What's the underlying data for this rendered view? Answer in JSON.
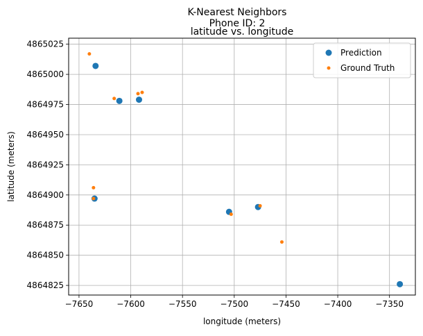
{
  "chart_data": {
    "type": "scatter",
    "title": "K-Nearest Neighbors",
    "subtitle": "Phone ID: 2",
    "axes_title": "latitude vs. longitude",
    "xlabel": "longitude (meters)",
    "ylabel": "latitude (meters)",
    "xlim": [
      -7660,
      -7325
    ],
    "ylim": [
      4864817,
      4865030
    ],
    "xticks": [
      {
        "value": -7650,
        "label": "−7650"
      },
      {
        "value": -7600,
        "label": "−7600"
      },
      {
        "value": -7550,
        "label": "−7550"
      },
      {
        "value": -7500,
        "label": "−7500"
      },
      {
        "value": -7450,
        "label": "−7450"
      },
      {
        "value": -7400,
        "label": "−7400"
      },
      {
        "value": -7350,
        "label": "−7350"
      }
    ],
    "yticks": [
      {
        "value": 4864825,
        "label": "4864825"
      },
      {
        "value": 4864850,
        "label": "4864850"
      },
      {
        "value": 4864875,
        "label": "4864875"
      },
      {
        "value": 4864900,
        "label": "4864900"
      },
      {
        "value": 4864925,
        "label": "4864925"
      },
      {
        "value": 4864950,
        "label": "4864950"
      },
      {
        "value": 4864975,
        "label": "4864975"
      },
      {
        "value": 4865000,
        "label": "4865000"
      },
      {
        "value": 4865025,
        "label": "4865025"
      }
    ],
    "grid": true,
    "legend_position": "top-right",
    "series": [
      {
        "name": "Prediction",
        "color": "#1f77b4",
        "marker": "large-dot",
        "points": [
          {
            "x": -7634,
            "y": 4865007
          },
          {
            "x": -7611,
            "y": 4864978
          },
          {
            "x": -7592,
            "y": 4864979
          },
          {
            "x": -7635,
            "y": 4864897
          },
          {
            "x": -7505,
            "y": 4864886
          },
          {
            "x": -7477,
            "y": 4864890
          },
          {
            "x": -7340,
            "y": 4864826
          }
        ]
      },
      {
        "name": "Ground Truth",
        "color": "#ff7f0e",
        "marker": "small-dot",
        "points": [
          {
            "x": -7640,
            "y": 4865017
          },
          {
            "x": -7616,
            "y": 4864980
          },
          {
            "x": -7593,
            "y": 4864984
          },
          {
            "x": -7589,
            "y": 4864985
          },
          {
            "x": -7636,
            "y": 4864906
          },
          {
            "x": -7636,
            "y": 4864897
          },
          {
            "x": -7503,
            "y": 4864884
          },
          {
            "x": -7475,
            "y": 4864891
          },
          {
            "x": -7454,
            "y": 4864861
          }
        ]
      }
    ]
  }
}
